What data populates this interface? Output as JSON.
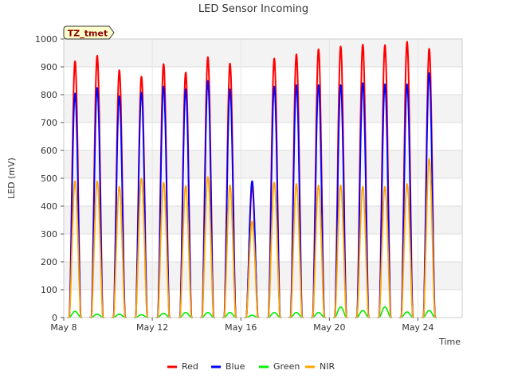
{
  "chart_data": {
    "type": "line",
    "title": "LED Sensor Incoming",
    "xlabel": "Time",
    "ylabel": "LED (mV)",
    "ylim": [
      0,
      1000
    ],
    "xlim": [
      "2023-05-08",
      "2023-05-26"
    ],
    "yticks": [
      0,
      100,
      200,
      300,
      400,
      500,
      600,
      700,
      800,
      900,
      1000
    ],
    "xticks": [
      {
        "date": "2023-05-08",
        "label": "May 8"
      },
      {
        "date": "2023-05-12",
        "label": "May 12"
      },
      {
        "date": "2023-05-16",
        "label": "May 16"
      },
      {
        "date": "2023-05-20",
        "label": "May 20"
      },
      {
        "date": "2023-05-24",
        "label": "May 24"
      }
    ],
    "grid": true,
    "station_label": "TZ_tmet",
    "legend_position": "bottom",
    "days": [
      "2023-05-08",
      "2023-05-09",
      "2023-05-10",
      "2023-05-11",
      "2023-05-12",
      "2023-05-13",
      "2023-05-14",
      "2023-05-15",
      "2023-05-16",
      "2023-05-17",
      "2023-05-18",
      "2023-05-19",
      "2023-05-20",
      "2023-05-21",
      "2023-05-22",
      "2023-05-23",
      "2023-05-24",
      "2023-05-25"
    ],
    "series": [
      {
        "name": "Red",
        "color": "#ff0000",
        "daily_peak": [
          920,
          940,
          888,
          865,
          910,
          880,
          935,
          912,
          470,
          930,
          945,
          963,
          973,
          980,
          978,
          990,
          965,
          0
        ]
      },
      {
        "name": "Blue",
        "color": "#0000ff",
        "daily_peak": [
          805,
          825,
          795,
          808,
          830,
          820,
          850,
          820,
          490,
          830,
          835,
          835,
          835,
          842,
          838,
          838,
          878,
          0
        ]
      },
      {
        "name": "Green",
        "color": "#00ee00",
        "daily_peak": [
          22,
          12,
          12,
          10,
          15,
          18,
          18,
          18,
          8,
          18,
          18,
          18,
          38,
          25,
          38,
          20,
          25,
          0
        ]
      },
      {
        "name": "NIR",
        "color": "#ffa500",
        "daily_peak": [
          490,
          490,
          470,
          500,
          485,
          473,
          505,
          475,
          345,
          485,
          480,
          475,
          475,
          470,
          470,
          480,
          570,
          0
        ]
      }
    ]
  }
}
